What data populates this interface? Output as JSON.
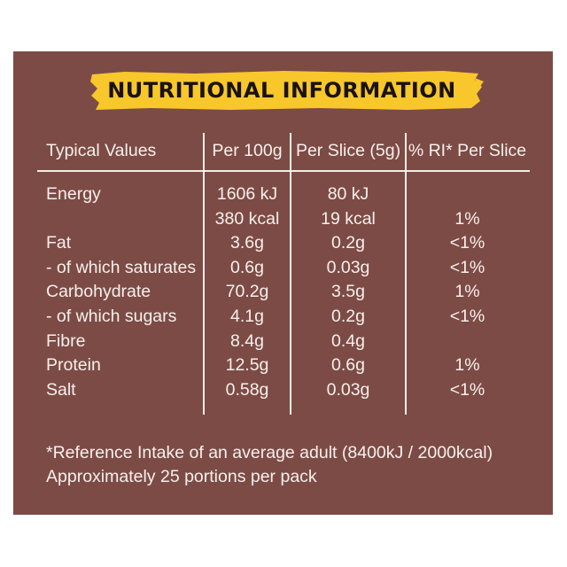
{
  "colors": {
    "panel_background": "#7d4b45",
    "banner_yellow": "#f7c72b",
    "text_light": "#f6f0ee",
    "banner_text": "#1a1212"
  },
  "title": "NUTRITIONAL INFORMATION",
  "table": {
    "headers": [
      "Typical Values",
      "Per 100g",
      "Per Slice (5g)",
      "% RI* Per Slice"
    ],
    "rows": [
      [
        "Energy",
        "1606 kJ",
        "80 kJ",
        ""
      ],
      [
        "",
        "380 kcal",
        "19 kcal",
        "1%"
      ],
      [
        "Fat",
        "3.6g",
        "0.2g",
        "<1%"
      ],
      [
        "- of which saturates",
        "0.6g",
        "0.03g",
        "<1%"
      ],
      [
        "Carbohydrate",
        "70.2g",
        "3.5g",
        "1%"
      ],
      [
        "- of which sugars",
        "4.1g",
        "0.2g",
        "<1%"
      ],
      [
        "Fibre",
        "8.4g",
        "0.4g",
        ""
      ],
      [
        "Protein",
        "12.5g",
        "0.6g",
        "1%"
      ],
      [
        "Salt",
        "0.58g",
        "0.03g",
        "<1%"
      ]
    ]
  },
  "footnotes": [
    "*Reference Intake of an average adult (8400kJ / 2000kcal)",
    "Approximately 25 portions per pack"
  ]
}
